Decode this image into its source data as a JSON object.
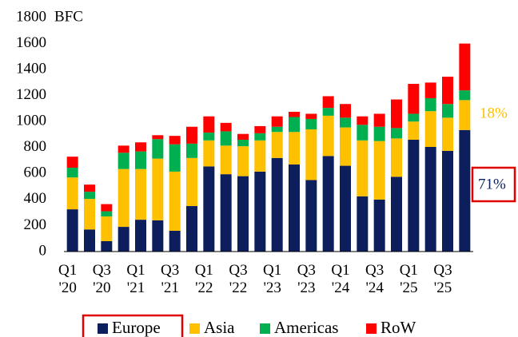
{
  "chart_data": {
    "type": "stacked_bar",
    "unit": "BFC",
    "categories": [
      "Q1 '20",
      null,
      "Q3 '20",
      null,
      "Q1 '21",
      null,
      "Q3 '21",
      null,
      "Q1 '22",
      null,
      "Q3 '22",
      null,
      "Q1 '23",
      null,
      "Q3 '23",
      null,
      "Q1 '24",
      null,
      "Q3 '24",
      null,
      "Q1 '25",
      null,
      "Q3 '25",
      null
    ],
    "series": [
      {
        "name": "Europe",
        "color": "#0c1e5b",
        "values": [
          325,
          170,
          80,
          190,
          245,
          240,
          160,
          350,
          655,
          595,
          580,
          615,
          720,
          670,
          550,
          735,
          660,
          425,
          400,
          575,
          860,
          805,
          775,
          935
        ]
      },
      {
        "name": "Asia",
        "color": "#ffc000",
        "values": [
          245,
          235,
          190,
          445,
          390,
          475,
          455,
          370,
          200,
          220,
          230,
          240,
          200,
          250,
          390,
          310,
          295,
          430,
          450,
          295,
          140,
          275,
          255,
          230
        ]
      },
      {
        "name": "Americas",
        "color": "#00b050",
        "values": [
          75,
          55,
          40,
          125,
          135,
          150,
          210,
          110,
          60,
          110,
          50,
          55,
          40,
          115,
          80,
          60,
          75,
          120,
          110,
          80,
          60,
          100,
          105,
          75
        ]
      },
      {
        "name": "RoW",
        "color": "#ff0000",
        "values": [
          85,
          55,
          55,
          55,
          70,
          30,
          65,
          130,
          125,
          65,
          45,
          55,
          80,
          40,
          40,
          90,
          105,
          65,
          100,
          220,
          230,
          120,
          210,
          360
        ]
      }
    ],
    "annotations": [
      {
        "text": "18%",
        "color": "#ffc000"
      },
      {
        "text": "71%",
        "color": "#0c1e5b"
      }
    ],
    "ylim": [
      0,
      1800
    ],
    "yticks": [
      0,
      200,
      400,
      600,
      800,
      1000,
      1200,
      1400,
      1600,
      1800
    ],
    "legend": "bottom"
  }
}
